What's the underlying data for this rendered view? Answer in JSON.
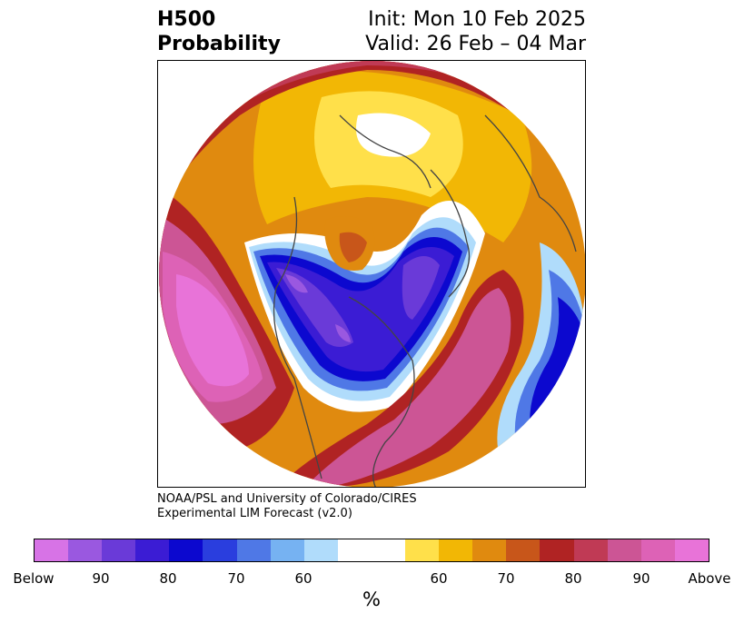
{
  "title": {
    "field": "H500",
    "product": "Probability",
    "init": "Init: Mon 10 Feb 2025",
    "valid": "Valid: 26 Feb – 04 Mar"
  },
  "credit": {
    "line1": "NOAA/PSL and University of Colorado/CIRES",
    "line2": "Experimental LIM Forecast (v2.0)"
  },
  "colorbar": {
    "colors": [
      "#d773e6",
      "#9a58e0",
      "#6a3ad8",
      "#3b1cd4",
      "#0c08cf",
      "#2a3ede",
      "#4f78e6",
      "#76b2f2",
      "#b0dcfb",
      "#ffffff",
      "#ffffff",
      "#ffe04a",
      "#f2b705",
      "#e08a0f",
      "#c8561a",
      "#b02323",
      "#c03a55",
      "#cc5595",
      "#dd62b6",
      "#e873d8"
    ],
    "labels": [
      {
        "text": "Below"
      },
      {
        "text": "90"
      },
      {
        "text": "80"
      },
      {
        "text": "70"
      },
      {
        "text": "60"
      },
      {
        "text": "60"
      },
      {
        "text": "70"
      },
      {
        "text": "80"
      },
      {
        "text": "90"
      },
      {
        "text": "Above"
      }
    ],
    "unit": "%"
  }
}
